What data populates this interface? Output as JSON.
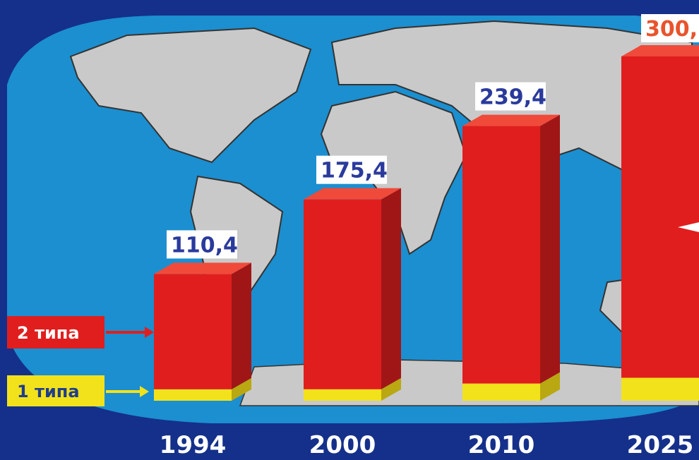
{
  "chart_data": {
    "type": "bar",
    "categories": [
      "1994",
      "2000",
      "2010",
      "2025"
    ],
    "series": [
      {
        "name": "1 типа",
        "values": [
          10,
          10,
          15,
          20
        ]
      },
      {
        "name": "2 типа",
        "values": [
          100.4,
          165.4,
          224.4,
          280
        ]
      }
    ],
    "totals": [
      110.4,
      175.4,
      239.4,
      300
    ],
    "data_labels": [
      "110,4",
      "175,4",
      "239,4",
      "300,"
    ],
    "ylim": [
      0,
      300
    ],
    "legend_position": "left",
    "colors": {
      "type1": "#f2e21c",
      "type2": "#e01e1e",
      "type2_side": "#a01616",
      "ocean": "#1b8fd0",
      "land": "#c9c9c9",
      "background": "#15308a",
      "label_text": "#2a3a9c",
      "top_label_text": "#e8542c"
    }
  },
  "legend": {
    "type2_label": "2 типа",
    "type1_label": "1 типа"
  }
}
